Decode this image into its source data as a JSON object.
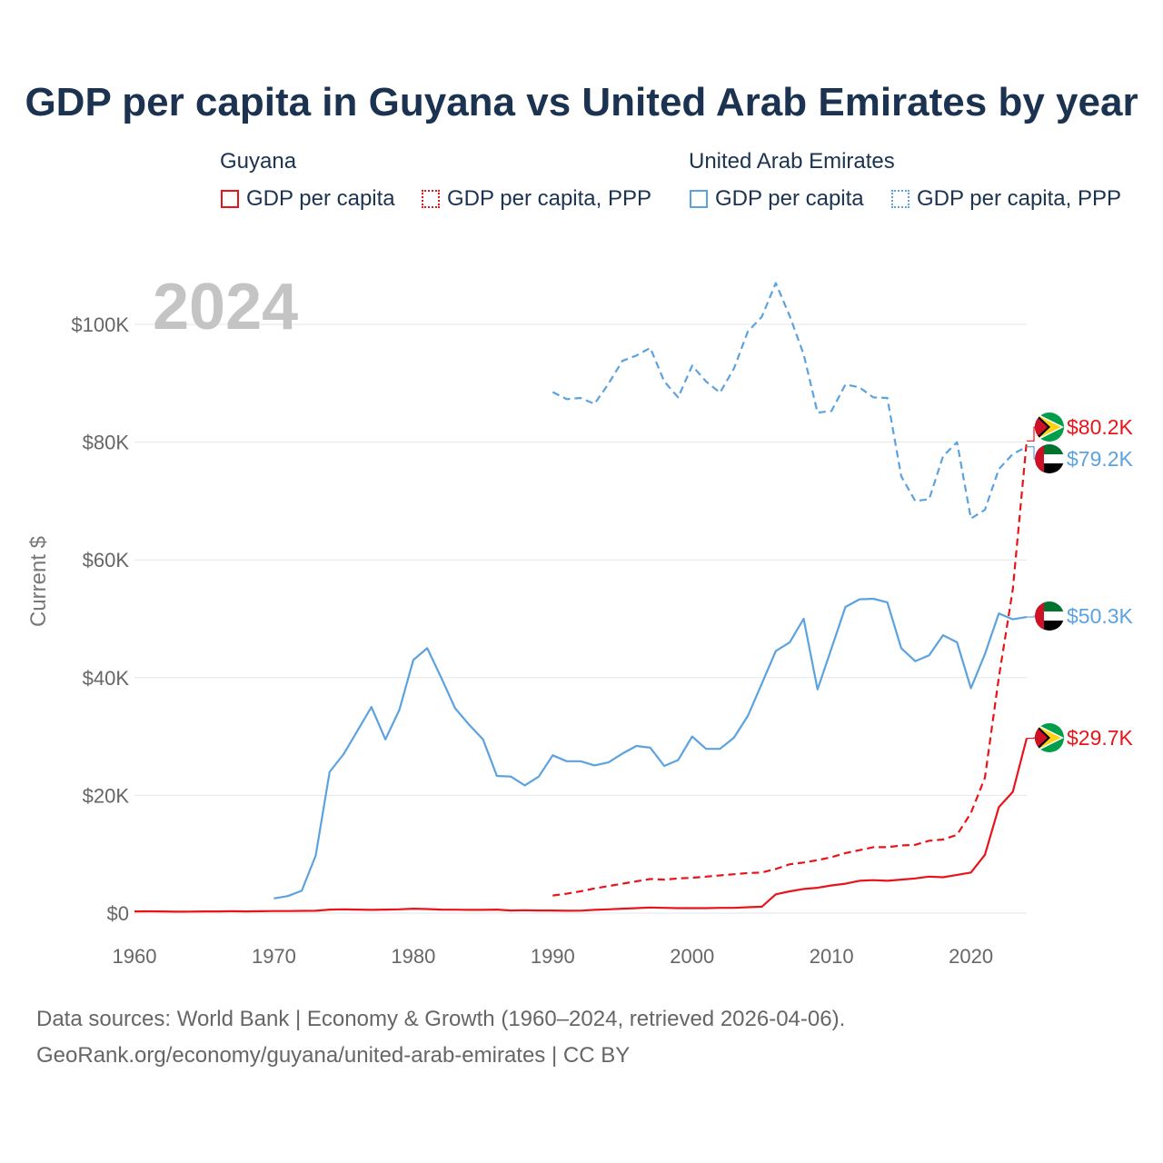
{
  "title": "GDP per capita in Guyana vs United Arab Emirates by year",
  "legend": {
    "guyana_label": "Guyana",
    "uae_label": "United Arab Emirates",
    "gdp_label": "GDP per capita",
    "ppp_label": "GDP per capita, PPP"
  },
  "year_label": "2024",
  "footer": {
    "line1": "Data sources: World Bank | Economy & Growth (1960–2024, retrieved 2026-04-06).",
    "line2": "GeoRank.org/economy/guyana/united-arab-emirates | CC BY"
  },
  "colors": {
    "guyana": "#e8141a",
    "uae": "#5ba2e0",
    "text": "#1b3350",
    "grid": "#e6e6e6",
    "axis": "#666666"
  },
  "chart_data": {
    "type": "line",
    "title": "GDP per capita in Guyana vs United Arab Emirates by year",
    "xlabel": "",
    "ylabel": "Current $",
    "xlim": [
      1960,
      2024
    ],
    "ylim": [
      0,
      110000
    ],
    "x_ticks": [
      1960,
      1970,
      1980,
      1990,
      2000,
      2010,
      2020
    ],
    "x_tick_labels": [
      "1960",
      "1970",
      "1980",
      "1990",
      "2000",
      "2010",
      "2020"
    ],
    "y_ticks": [
      0,
      20000,
      40000,
      60000,
      80000,
      100000
    ],
    "y_tick_labels": [
      "$0",
      "$20K",
      "$40K",
      "$60K",
      "$80K",
      "$100K"
    ],
    "series": [
      {
        "name": "Guyana GDP per capita",
        "country": "guyana",
        "style": "solid",
        "end_label": "$29.7K",
        "points": [
          [
            1960,
            300
          ],
          [
            1961,
            310
          ],
          [
            1962,
            300
          ],
          [
            1963,
            250
          ],
          [
            1964,
            270
          ],
          [
            1965,
            290
          ],
          [
            1966,
            300
          ],
          [
            1967,
            320
          ],
          [
            1968,
            300
          ],
          [
            1969,
            320
          ],
          [
            1970,
            350
          ],
          [
            1971,
            360
          ],
          [
            1972,
            380
          ],
          [
            1973,
            400
          ],
          [
            1974,
            600
          ],
          [
            1975,
            650
          ],
          [
            1976,
            600
          ],
          [
            1977,
            550
          ],
          [
            1978,
            600
          ],
          [
            1979,
            650
          ],
          [
            1980,
            750
          ],
          [
            1981,
            700
          ],
          [
            1982,
            600
          ],
          [
            1983,
            580
          ],
          [
            1984,
            550
          ],
          [
            1985,
            560
          ],
          [
            1986,
            600
          ],
          [
            1987,
            450
          ],
          [
            1988,
            500
          ],
          [
            1989,
            450
          ],
          [
            1990,
            450
          ],
          [
            1991,
            400
          ],
          [
            1992,
            420
          ],
          [
            1993,
            550
          ],
          [
            1994,
            650
          ],
          [
            1995,
            750
          ],
          [
            1996,
            850
          ],
          [
            1997,
            950
          ],
          [
            1998,
            900
          ],
          [
            1999,
            850
          ],
          [
            2000,
            850
          ],
          [
            2001,
            850
          ],
          [
            2002,
            900
          ],
          [
            2003,
            900
          ],
          [
            2004,
            1000
          ],
          [
            2005,
            1100
          ],
          [
            2006,
            3200
          ],
          [
            2007,
            3700
          ],
          [
            2008,
            4100
          ],
          [
            2009,
            4300
          ],
          [
            2010,
            4700
          ],
          [
            2011,
            5000
          ],
          [
            2012,
            5500
          ],
          [
            2013,
            5600
          ],
          [
            2014,
            5500
          ],
          [
            2015,
            5700
          ],
          [
            2016,
            5900
          ],
          [
            2017,
            6200
          ],
          [
            2018,
            6100
          ],
          [
            2019,
            6500
          ],
          [
            2020,
            6900
          ],
          [
            2021,
            9900
          ],
          [
            2022,
            18000
          ],
          [
            2023,
            20600
          ],
          [
            2024,
            29700
          ]
        ]
      },
      {
        "name": "Guyana GDP per capita, PPP",
        "country": "guyana",
        "style": "dashed",
        "end_label": "$80.2K",
        "points": [
          [
            1990,
            3000
          ],
          [
            1991,
            3300
          ],
          [
            1992,
            3700
          ],
          [
            1993,
            4200
          ],
          [
            1994,
            4600
          ],
          [
            1995,
            5000
          ],
          [
            1996,
            5400
          ],
          [
            1997,
            5800
          ],
          [
            1998,
            5700
          ],
          [
            1999,
            5900
          ],
          [
            2000,
            6000
          ],
          [
            2001,
            6200
          ],
          [
            2002,
            6400
          ],
          [
            2003,
            6600
          ],
          [
            2004,
            6800
          ],
          [
            2005,
            6900
          ],
          [
            2006,
            7500
          ],
          [
            2007,
            8300
          ],
          [
            2008,
            8600
          ],
          [
            2009,
            9000
          ],
          [
            2010,
            9500
          ],
          [
            2011,
            10200
          ],
          [
            2012,
            10700
          ],
          [
            2013,
            11200
          ],
          [
            2014,
            11200
          ],
          [
            2015,
            11500
          ],
          [
            2016,
            11600
          ],
          [
            2017,
            12300
          ],
          [
            2018,
            12500
          ],
          [
            2019,
            13300
          ],
          [
            2020,
            17000
          ],
          [
            2021,
            23000
          ],
          [
            2022,
            40000
          ],
          [
            2023,
            55000
          ],
          [
            2024,
            80200
          ]
        ]
      },
      {
        "name": "United Arab Emirates GDP per capita",
        "country": "uae",
        "style": "solid",
        "end_label": "$50.3K",
        "points": [
          [
            1970,
            2500
          ],
          [
            1971,
            2900
          ],
          [
            1972,
            3800
          ],
          [
            1973,
            9800
          ],
          [
            1974,
            24000
          ],
          [
            1975,
            27000
          ],
          [
            1976,
            31000
          ],
          [
            1977,
            35000
          ],
          [
            1978,
            29500
          ],
          [
            1979,
            34500
          ],
          [
            1980,
            43000
          ],
          [
            1981,
            45000
          ],
          [
            1982,
            40000
          ],
          [
            1983,
            34800
          ],
          [
            1984,
            32000
          ],
          [
            1985,
            29500
          ],
          [
            1986,
            23300
          ],
          [
            1987,
            23200
          ],
          [
            1988,
            21700
          ],
          [
            1989,
            23200
          ],
          [
            1990,
            26800
          ],
          [
            1991,
            25800
          ],
          [
            1992,
            25800
          ],
          [
            1993,
            25100
          ],
          [
            1994,
            25600
          ],
          [
            1995,
            27100
          ],
          [
            1996,
            28400
          ],
          [
            1997,
            28100
          ],
          [
            1998,
            25000
          ],
          [
            1999,
            26000
          ],
          [
            2000,
            30000
          ],
          [
            2001,
            27900
          ],
          [
            2002,
            27900
          ],
          [
            2003,
            29800
          ],
          [
            2004,
            33500
          ],
          [
            2005,
            39000
          ],
          [
            2006,
            44500
          ],
          [
            2007,
            46000
          ],
          [
            2008,
            50000
          ],
          [
            2009,
            38000
          ],
          [
            2010,
            45000
          ],
          [
            2011,
            52000
          ],
          [
            2012,
            53300
          ],
          [
            2013,
            53400
          ],
          [
            2014,
            52800
          ],
          [
            2015,
            45000
          ],
          [
            2016,
            42800
          ],
          [
            2017,
            43800
          ],
          [
            2018,
            47200
          ],
          [
            2019,
            46000
          ],
          [
            2020,
            38200
          ],
          [
            2021,
            44000
          ],
          [
            2022,
            50900
          ],
          [
            2023,
            49900
          ],
          [
            2024,
            50300
          ]
        ]
      },
      {
        "name": "United Arab Emirates GDP per capita, PPP",
        "country": "uae",
        "style": "dashed",
        "end_label": "$79.2K",
        "points": [
          [
            1990,
            88500
          ],
          [
            1991,
            87300
          ],
          [
            1992,
            87500
          ],
          [
            1993,
            86500
          ],
          [
            1994,
            89900
          ],
          [
            1995,
            93800
          ],
          [
            1996,
            94700
          ],
          [
            1997,
            96000
          ],
          [
            1998,
            90300
          ],
          [
            1999,
            87600
          ],
          [
            2000,
            93000
          ],
          [
            2001,
            90300
          ],
          [
            2002,
            88400
          ],
          [
            2003,
            92500
          ],
          [
            2004,
            98800
          ],
          [
            2005,
            101300
          ],
          [
            2006,
            107000
          ],
          [
            2007,
            101400
          ],
          [
            2008,
            94900
          ],
          [
            2009,
            85000
          ],
          [
            2010,
            85300
          ],
          [
            2011,
            89800
          ],
          [
            2012,
            89300
          ],
          [
            2013,
            87600
          ],
          [
            2014,
            87500
          ],
          [
            2015,
            74200
          ],
          [
            2016,
            70000
          ],
          [
            2017,
            70300
          ],
          [
            2018,
            77600
          ],
          [
            2019,
            80000
          ],
          [
            2020,
            67000
          ],
          [
            2021,
            68500
          ],
          [
            2022,
            75400
          ],
          [
            2023,
            78000
          ],
          [
            2024,
            79200
          ]
        ]
      }
    ]
  }
}
